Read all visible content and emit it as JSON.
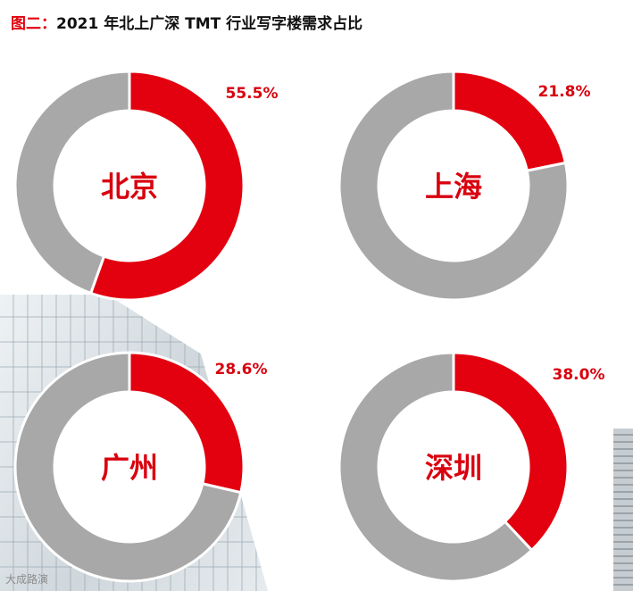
{
  "header": {
    "prefix": "图二：",
    "title": "2021 年北上广深 TMT 行业写字楼需求占比"
  },
  "colors": {
    "highlight": "#e3000f",
    "remainder": "#a8a8a8",
    "label": "#d9000e"
  },
  "chart_data": [
    {
      "type": "pie",
      "center_label": "北京",
      "value_label": "55.5%",
      "values": [
        55.5,
        44.5
      ]
    },
    {
      "type": "pie",
      "center_label": "上海",
      "value_label": "21.8%",
      "values": [
        21.8,
        78.2
      ]
    },
    {
      "type": "pie",
      "center_label": "广州",
      "value_label": "28.6%",
      "values": [
        28.6,
        71.4
      ]
    },
    {
      "type": "pie",
      "center_label": "深圳",
      "value_label": "38.0%",
      "values": [
        38.0,
        62.0
      ]
    }
  ],
  "watermark": "大成路演"
}
